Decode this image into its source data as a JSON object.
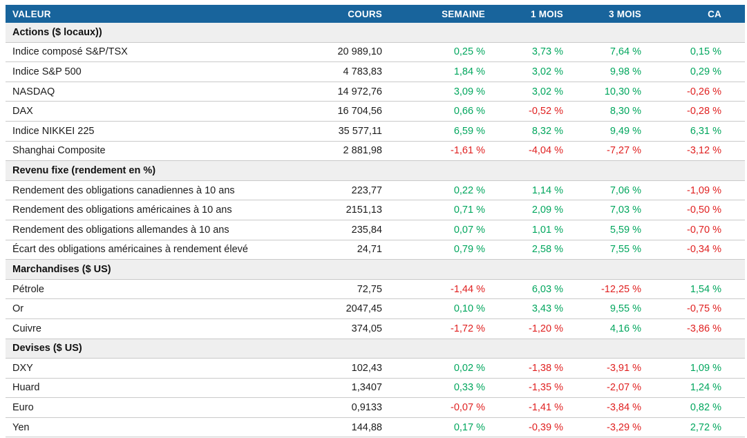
{
  "table": {
    "colors": {
      "header_bg": "#18649c",
      "header_text": "#ffffff",
      "positive": "#00a65d",
      "negative": "#e02020",
      "section_bg": "#efefef",
      "row_line": "#c9c9c9"
    },
    "columns": [
      "VALEUR",
      "COURS",
      "SEMAINE",
      "1 MOIS",
      "3 MOIS",
      "CA"
    ],
    "sections": [
      {
        "label": "Actions ($ locaux))",
        "rows": [
          {
            "name": "Indice composé S&P/TSX",
            "cours": "20 989,10",
            "semaine": "0,25 %",
            "mois1": "3,73 %",
            "mois3": "7,64 %",
            "ca": "0,15 %"
          },
          {
            "name": "Indice S&P 500",
            "cours": "4 783,83",
            "semaine": "1,84 %",
            "mois1": "3,02 %",
            "mois3": "9,98 %",
            "ca": "0,29 %"
          },
          {
            "name": "NASDAQ",
            "cours": "14 972,76",
            "semaine": "3,09 %",
            "mois1": "3,02 %",
            "mois3": "10,30 %",
            "ca": "-0,26 %"
          },
          {
            "name": "DAX",
            "cours": "16 704,56",
            "semaine": "0,66 %",
            "mois1": "-0,52 %",
            "mois3": "8,30 %",
            "ca": "-0,28 %"
          },
          {
            "name": "Indice NIKKEI 225",
            "cours": "35 577,11",
            "semaine": "6,59 %",
            "mois1": "8,32 %",
            "mois3": "9,49 %",
            "ca": "6,31 %"
          },
          {
            "name": "Shanghai Composite",
            "cours": "2 881,98",
            "semaine": "-1,61 %",
            "mois1": "-4,04 %",
            "mois3": "-7,27 %",
            "ca": "-3,12 %"
          }
        ]
      },
      {
        "label": "Revenu fixe (rendement en %)",
        "rows": [
          {
            "name": "Rendement des obligations canadiennes à 10 ans",
            "cours": "223,77",
            "semaine": "0,22 %",
            "mois1": "1,14 %",
            "mois3": "7,06 %",
            "ca": "-1,09 %"
          },
          {
            "name": "Rendement des obligations américaines à 10 ans",
            "cours": "2151,13",
            "semaine": "0,71 %",
            "mois1": "2,09 %",
            "mois3": "7,03 %",
            "ca": "-0,50 %"
          },
          {
            "name": "Rendement des obligations allemandes à 10 ans",
            "cours": "235,84",
            "semaine": "0,07 %",
            "mois1": "1,01 %",
            "mois3": "5,59 %",
            "ca": "-0,70 %"
          },
          {
            "name": "Écart des obligations américaines à rendement élevé",
            "cours": "24,71",
            "semaine": "0,79 %",
            "mois1": "2,58 %",
            "mois3": "7,55 %",
            "ca": "-0,34 %"
          }
        ]
      },
      {
        "label": "Marchandises ($ US)",
        "rows": [
          {
            "name": "Pétrole",
            "cours": "72,75",
            "semaine": "-1,44 %",
            "mois1": "6,03 %",
            "mois3": "-12,25 %",
            "ca": "1,54 %"
          },
          {
            "name": "Or",
            "cours": "2047,45",
            "semaine": "0,10 %",
            "mois1": "3,43 %",
            "mois3": "9,55 %",
            "ca": "-0,75 %"
          },
          {
            "name": "Cuivre",
            "cours": "374,05",
            "semaine": "-1,72 %",
            "mois1": "-1,20 %",
            "mois3": "4,16 %",
            "ca": "-3,86 %"
          }
        ]
      },
      {
        "label": "Devises ($ US)",
        "rows": [
          {
            "name": "DXY",
            "cours": "102,43",
            "semaine": "0,02 %",
            "mois1": "-1,38 %",
            "mois3": "-3,91 %",
            "ca": "1,09 %"
          },
          {
            "name": "Huard",
            "cours": "1,3407",
            "semaine": "0,33 %",
            "mois1": "-1,35 %",
            "mois3": "-2,07 %",
            "ca": "1,24 %"
          },
          {
            "name": "Euro",
            "cours": "0,9133",
            "semaine": "-0,07 %",
            "mois1": "-1,41 %",
            "mois3": "-3,84 %",
            "ca": "0,82 %"
          },
          {
            "name": "Yen",
            "cours": "144,88",
            "semaine": "0,17 %",
            "mois1": "-0,39 %",
            "mois3": "-3,29 %",
            "ca": "2,72 %"
          }
        ]
      }
    ]
  }
}
